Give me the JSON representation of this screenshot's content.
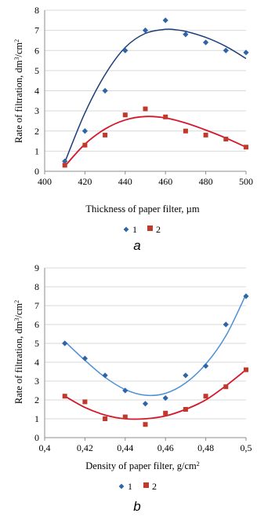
{
  "colors": {
    "series1": "#2E65A8",
    "series1_fit_a": "#1C3E78",
    "series1_fit_b": "#4C90D6",
    "series2": "#C0392B",
    "series2_fit": "#D4172A",
    "grid": "#D9D9D9",
    "axis": "#8C8C8C"
  },
  "chart_data": [
    {
      "type": "scatter",
      "panel_label": "a",
      "xlabel": "Thickness of paper filter, µm",
      "ylabel_main": "Rate of filtration,  dm",
      "ylabel_sup1": "3",
      "ylabel_mid": "/cm",
      "ylabel_sup2": "2",
      "xlim": [
        400,
        500
      ],
      "ylim": [
        0,
        8
      ],
      "xticks": [
        "400",
        "420",
        "440",
        "460",
        "480",
        "500"
      ],
      "yticks": [
        "0",
        "1",
        "2",
        "3",
        "4",
        "5",
        "6",
        "7",
        "8"
      ],
      "grid": "horizontal",
      "legend_position": "bottom",
      "series": [
        {
          "name": "1",
          "marker": "diamond",
          "points": [
            [
              410,
              0.5
            ],
            [
              420,
              2.0
            ],
            [
              430,
              4.0
            ],
            [
              440,
              6.0
            ],
            [
              450,
              7.0
            ],
            [
              460,
              7.5
            ],
            [
              470,
              6.8
            ],
            [
              480,
              6.4
            ],
            [
              490,
              6.0
            ],
            [
              500,
              5.9
            ]
          ],
          "trend": [
            [
              410,
              0.45
            ],
            [
              420,
              2.9
            ],
            [
              430,
              4.8
            ],
            [
              440,
              6.15
            ],
            [
              450,
              6.85
            ],
            [
              460,
              7.05
            ],
            [
              465,
              7.03
            ],
            [
              470,
              6.95
            ],
            [
              480,
              6.65
            ],
            [
              490,
              6.2
            ],
            [
              500,
              5.6
            ]
          ]
        },
        {
          "name": "2",
          "marker": "square",
          "points": [
            [
              410,
              0.3
            ],
            [
              420,
              1.3
            ],
            [
              430,
              1.8
            ],
            [
              440,
              2.8
            ],
            [
              450,
              3.1
            ],
            [
              460,
              2.7
            ],
            [
              470,
              2.0
            ],
            [
              480,
              1.8
            ],
            [
              490,
              1.6
            ],
            [
              500,
              1.2
            ]
          ],
          "trend": [
            [
              410,
              0.25
            ],
            [
              420,
              1.35
            ],
            [
              430,
              2.1
            ],
            [
              440,
              2.55
            ],
            [
              450,
              2.72
            ],
            [
              460,
              2.65
            ],
            [
              470,
              2.4
            ],
            [
              480,
              2.05
            ],
            [
              490,
              1.65
            ],
            [
              500,
              1.2
            ]
          ]
        }
      ]
    },
    {
      "type": "scatter",
      "panel_label": "b",
      "xlabel": "Density of paper filter, g/cm",
      "xlabel_sup": "2",
      "ylabel_main": "Rate of filtration,  dm",
      "ylabel_sup1": "3",
      "ylabel_mid": "/cm",
      "ylabel_sup2": "2",
      "xlim": [
        0.4,
        0.5
      ],
      "ylim": [
        0,
        9
      ],
      "xticks": [
        "0,4",
        "0,42",
        "0,44",
        "0,46",
        "0,48",
        "0,5"
      ],
      "yticks": [
        "0",
        "1",
        "2",
        "3",
        "4",
        "5",
        "6",
        "7",
        "8",
        "9"
      ],
      "grid": "horizontal",
      "legend_position": "bottom",
      "series": [
        {
          "name": "1",
          "marker": "diamond",
          "points": [
            [
              0.41,
              5.0
            ],
            [
              0.42,
              4.2
            ],
            [
              0.43,
              3.3
            ],
            [
              0.44,
              2.5
            ],
            [
              0.45,
              1.8
            ],
            [
              0.46,
              2.1
            ],
            [
              0.47,
              3.3
            ],
            [
              0.48,
              3.8
            ],
            [
              0.49,
              6.0
            ],
            [
              0.5,
              7.5
            ]
          ],
          "trend": [
            [
              0.41,
              5.1
            ],
            [
              0.42,
              4.1
            ],
            [
              0.43,
              3.2
            ],
            [
              0.44,
              2.55
            ],
            [
              0.45,
              2.25
            ],
            [
              0.46,
              2.35
            ],
            [
              0.47,
              2.9
            ],
            [
              0.48,
              3.9
            ],
            [
              0.49,
              5.4
            ],
            [
              0.5,
              7.6
            ]
          ]
        },
        {
          "name": "2",
          "marker": "square",
          "points": [
            [
              0.41,
              2.2
            ],
            [
              0.42,
              1.9
            ],
            [
              0.43,
              1.0
            ],
            [
              0.44,
              1.1
            ],
            [
              0.45,
              0.7
            ],
            [
              0.46,
              1.3
            ],
            [
              0.47,
              1.5
            ],
            [
              0.48,
              2.2
            ],
            [
              0.49,
              2.7
            ],
            [
              0.5,
              3.6
            ]
          ],
          "trend": [
            [
              0.41,
              2.2
            ],
            [
              0.42,
              1.6
            ],
            [
              0.43,
              1.2
            ],
            [
              0.44,
              1.0
            ],
            [
              0.45,
              1.0
            ],
            [
              0.46,
              1.15
            ],
            [
              0.47,
              1.5
            ],
            [
              0.48,
              2.0
            ],
            [
              0.49,
              2.75
            ],
            [
              0.5,
              3.6
            ]
          ]
        }
      ]
    }
  ]
}
